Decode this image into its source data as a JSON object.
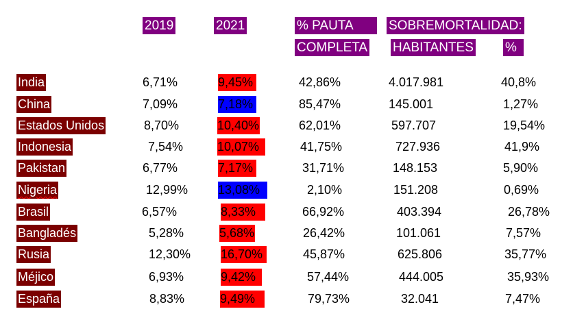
{
  "headers": {
    "y2019": "2019",
    "y2021": "2021",
    "pauta_line1": "% PAUTA",
    "pauta_line2": "COMPLETA",
    "sobre_line1": "SOBREMORTALIDAD:",
    "habitantes": "HABITANTES",
    "pct": "%"
  },
  "highlight_colors": {
    "red": "#ff0000",
    "blue": "#0000ff"
  },
  "rows": [
    {
      "country": "India",
      "y2019": "6,71%",
      "y2021": "9,45%",
      "y2021_highlight": "red",
      "pauta": "42,86%",
      "habitantes": "4.017.981",
      "pct": "40,8%"
    },
    {
      "country": "China",
      "y2019": "7,09%",
      "y2021": "7,18%",
      "y2021_highlight": "blue",
      "pauta": "85,47%",
      "habitantes": "145.001",
      "pct": "1,27%"
    },
    {
      "country": "Estados Unidos",
      "y2019": "8,70%",
      "y2021": "10,40%",
      "y2021_highlight": "red",
      "pauta": "62,01%",
      "habitantes": "597.707",
      "pct": "19,54%"
    },
    {
      "country": "Indonesia",
      "y2019": "7,54%",
      "y2021": "10,07%",
      "y2021_highlight": "red",
      "pauta": "41,75%",
      "habitantes": "727.936",
      "pct": "41,9%"
    },
    {
      "country": "Pakistan",
      "y2019": "6,77%",
      "y2021": "7,17%",
      "y2021_highlight": "red",
      "pauta": "31,71%",
      "habitantes": "148.153",
      "pct": "5,90%"
    },
    {
      "country": "Nigeria",
      "y2019": "12,99%",
      "y2021": "13,08%",
      "y2021_highlight": "blue",
      "pauta": "2,10%",
      "habitantes": "151.208",
      "pct": "0,69%"
    },
    {
      "country": "Brasil",
      "y2019": "6,57%",
      "y2021": "8,33%",
      "y2021_highlight": "red",
      "pauta": "66,92%",
      "habitantes": "403.394",
      "pct": "26,78%"
    },
    {
      "country": "Bangladés",
      "y2019": "5,28%",
      "y2021": "5,68%",
      "y2021_highlight": "red",
      "pauta": "26,42%",
      "habitantes": "101.061",
      "pct": "7,57%"
    },
    {
      "country": "Rusia",
      "y2019": "12,30%",
      "y2021": "16,70%",
      "y2021_highlight": "red",
      "pauta": "45,87%",
      "habitantes": "625.806",
      "pct": "35,77%"
    },
    {
      "country": "Méjico",
      "y2019": "6,93%",
      "y2021": "9,42%",
      "y2021_highlight": "red",
      "pauta": "57,44%",
      "habitantes": "444.005",
      "pct": "35,93%"
    },
    {
      "country": "España",
      "y2019": "8,83%",
      "y2021": "9,49%",
      "y2021_highlight": "red",
      "pauta": "79,73%",
      "habitantes": "32.041",
      "pct": "7,47%"
    }
  ]
}
